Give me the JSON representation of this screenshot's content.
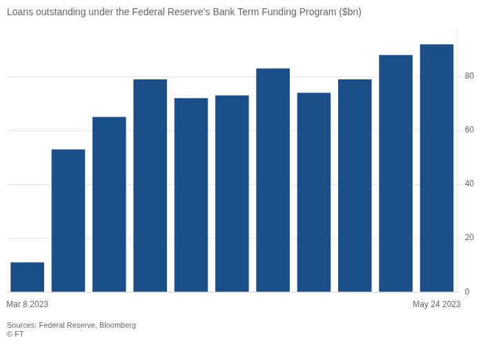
{
  "chart_data": {
    "type": "bar",
    "title": "Loans outstanding under the Federal Reserve's Bank Term Funding Program ($bn)",
    "categories": [
      "Mar 8 2023",
      null,
      null,
      null,
      null,
      null,
      null,
      null,
      null,
      null,
      "May 24 2023"
    ],
    "values": [
      11,
      53,
      65,
      79,
      72,
      73,
      83,
      74,
      79,
      88,
      92
    ],
    "color": "#1b4f8a",
    "ylim": [
      0,
      98
    ],
    "yticks": [
      0,
      20,
      40,
      60,
      80
    ],
    "grid": "y",
    "annotations": [
      "Sources: Federal Reserve, Bloomberg",
      "© FT"
    ]
  }
}
